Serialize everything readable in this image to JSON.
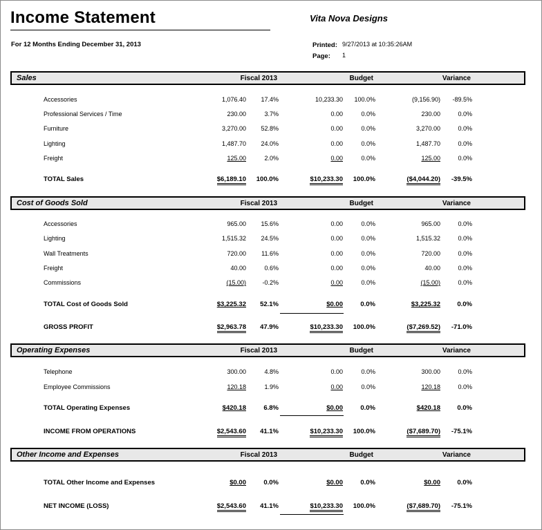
{
  "header": {
    "title": "Income Statement",
    "company": "Vita Nova Designs",
    "period": "For 12 Months Ending December 31, 2013",
    "printed_label": "Printed:",
    "printed_value": "9/27/2013 at 10:35:26AM",
    "page_label": "Page:",
    "page_value": "1"
  },
  "columns": {
    "fiscal": "Fiscal 2013",
    "budget": "Budget",
    "variance": "Variance"
  },
  "sections": {
    "sales": {
      "title": "Sales",
      "rows": [
        {
          "label": "Accessories",
          "f": "1,076.40",
          "fp": "17.4%",
          "b": "10,233.30",
          "bp": "100.0%",
          "v": "(9,156.90)",
          "vp": "-89.5%"
        },
        {
          "label": "Professional Services / Time",
          "f": "230.00",
          "fp": "3.7%",
          "b": "0.00",
          "bp": "0.0%",
          "v": "230.00",
          "vp": "0.0%"
        },
        {
          "label": "Furniture",
          "f": "3,270.00",
          "fp": "52.8%",
          "b": "0.00",
          "bp": "0.0%",
          "v": "3,270.00",
          "vp": "0.0%"
        },
        {
          "label": "Lighting",
          "f": "1,487.70",
          "fp": "24.0%",
          "b": "0.00",
          "bp": "0.0%",
          "v": "1,487.70",
          "vp": "0.0%"
        },
        {
          "label": "Freight",
          "f": "125.00",
          "fp": "2.0%",
          "b": "0.00",
          "bp": "0.0%",
          "v": "125.00",
          "vp": "0.0%"
        }
      ],
      "total": {
        "label": "TOTAL Sales",
        "f": "$6,189.10",
        "fp": "100.0%",
        "b": "$10,233.30",
        "bp": "100.0%",
        "v": "($4,044.20)",
        "vp": "-39.5%"
      }
    },
    "cogs": {
      "title": "Cost of Goods Sold",
      "rows": [
        {
          "label": "Accessories",
          "f": "965.00",
          "fp": "15.6%",
          "b": "0.00",
          "bp": "0.0%",
          "v": "965.00",
          "vp": "0.0%"
        },
        {
          "label": "Lighting",
          "f": "1,515.32",
          "fp": "24.5%",
          "b": "0.00",
          "bp": "0.0%",
          "v": "1,515.32",
          "vp": "0.0%"
        },
        {
          "label": "Wall Treatments",
          "f": "720.00",
          "fp": "11.6%",
          "b": "0.00",
          "bp": "0.0%",
          "v": "720.00",
          "vp": "0.0%"
        },
        {
          "label": "Freight",
          "f": "40.00",
          "fp": "0.6%",
          "b": "0.00",
          "bp": "0.0%",
          "v": "40.00",
          "vp": "0.0%"
        },
        {
          "label": "Commissions",
          "f": "(15.00)",
          "fp": "-0.2%",
          "b": "0.00",
          "bp": "0.0%",
          "v": "(15.00)",
          "vp": "0.0%"
        }
      ],
      "total": {
        "label": "TOTAL Cost of Goods Sold",
        "f": "$3,225.32",
        "fp": "52.1%",
        "b": "$0.00",
        "bp": "0.0%",
        "v": "$3,225.32",
        "vp": "0.0%"
      },
      "gross": {
        "label": "GROSS PROFIT",
        "f": "$2,963.78",
        "fp": "47.9%",
        "b": "$10,233.30",
        "bp": "100.0%",
        "v": "($7,269.52)",
        "vp": "-71.0%"
      }
    },
    "opex": {
      "title": "Operating Expenses",
      "rows": [
        {
          "label": "Telephone",
          "f": "300.00",
          "fp": "4.8%",
          "b": "0.00",
          "bp": "0.0%",
          "v": "300.00",
          "vp": "0.0%"
        },
        {
          "label": "Employee Commissions",
          "f": "120.18",
          "fp": "1.9%",
          "b": "0.00",
          "bp": "0.0%",
          "v": "120.18",
          "vp": "0.0%"
        }
      ],
      "total": {
        "label": "TOTAL Operating Expenses",
        "f": "$420.18",
        "fp": "6.8%",
        "b": "$0.00",
        "bp": "0.0%",
        "v": "$420.18",
        "vp": "0.0%"
      },
      "ops": {
        "label": "INCOME FROM OPERATIONS",
        "f": "$2,543.60",
        "fp": "41.1%",
        "b": "$10,233.30",
        "bp": "100.0%",
        "v": "($7,689.70)",
        "vp": "-75.1%"
      }
    },
    "other": {
      "title": "Other Income and Expenses",
      "total": {
        "label": "TOTAL Other Income and Expenses",
        "f": "$0.00",
        "fp": "0.0%",
        "b": "$0.00",
        "bp": "0.0%",
        "v": "$0.00",
        "vp": "0.0%"
      },
      "net": {
        "label": "NET INCOME (LOSS)",
        "f": "$2,543.60",
        "fp": "41.1%",
        "b": "$10,233.30",
        "bp": "100.0%",
        "v": "($7,689.70)",
        "vp": "-75.1%"
      }
    }
  }
}
